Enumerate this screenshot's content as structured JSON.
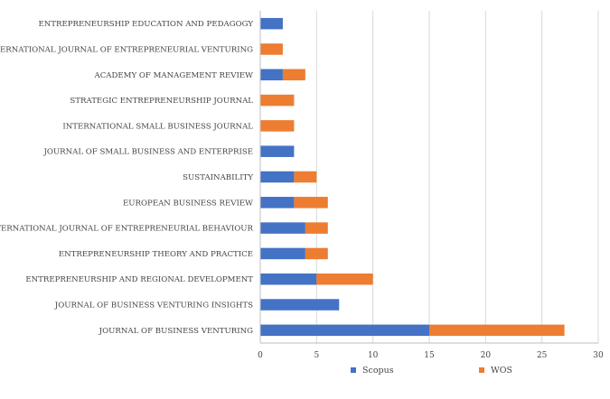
{
  "chart_data": {
    "type": "bar",
    "orientation": "horizontal",
    "stacked": true,
    "categories": [
      "ENTREPRENEURSHIP EDUCATION AND PEDAGOGY",
      "INTERNATIONAL JOURNAL OF ENTREPRENEURIAL VENTURING",
      "ACADEMY OF MANAGEMENT REVIEW",
      "STRATEGIC ENTREPRENEURSHIP JOURNAL",
      "INTERNATIONAL SMALL BUSINESS JOURNAL",
      "JOURNAL OF SMALL BUSINESS AND ENTERPRISE",
      "SUSTAINABILITY",
      "EUROPEAN BUSINESS REVIEW",
      "INTERNATIONAL JOURNAL OF ENTREPRENEURIAL BEHAVIOUR",
      "ENTREPRENEURSHIP THEORY AND PRACTICE",
      "ENTREPRENEURSHIP AND REGIONAL DEVELOPMENT",
      "JOURNAL OF BUSINESS VENTURING INSIGHTS",
      "JOURNAL OF BUSINESS VENTURING"
    ],
    "series": [
      {
        "name": "Scopus",
        "color": "#4472C4",
        "values": [
          2,
          0,
          2,
          0,
          0,
          3,
          3,
          3,
          4,
          4,
          5,
          7,
          15
        ]
      },
      {
        "name": "WOS",
        "color": "#ED7D31",
        "values": [
          0,
          2,
          2,
          3,
          3,
          0,
          2,
          3,
          2,
          2,
          5,
          0,
          12
        ]
      }
    ],
    "xlim": [
      0,
      30
    ],
    "xticks": [
      "0",
      "5",
      "10",
      "15",
      "20",
      "25",
      "30"
    ],
    "grid": true,
    "legend_position": "bottom",
    "title": "",
    "xlabel": "",
    "ylabel": ""
  }
}
